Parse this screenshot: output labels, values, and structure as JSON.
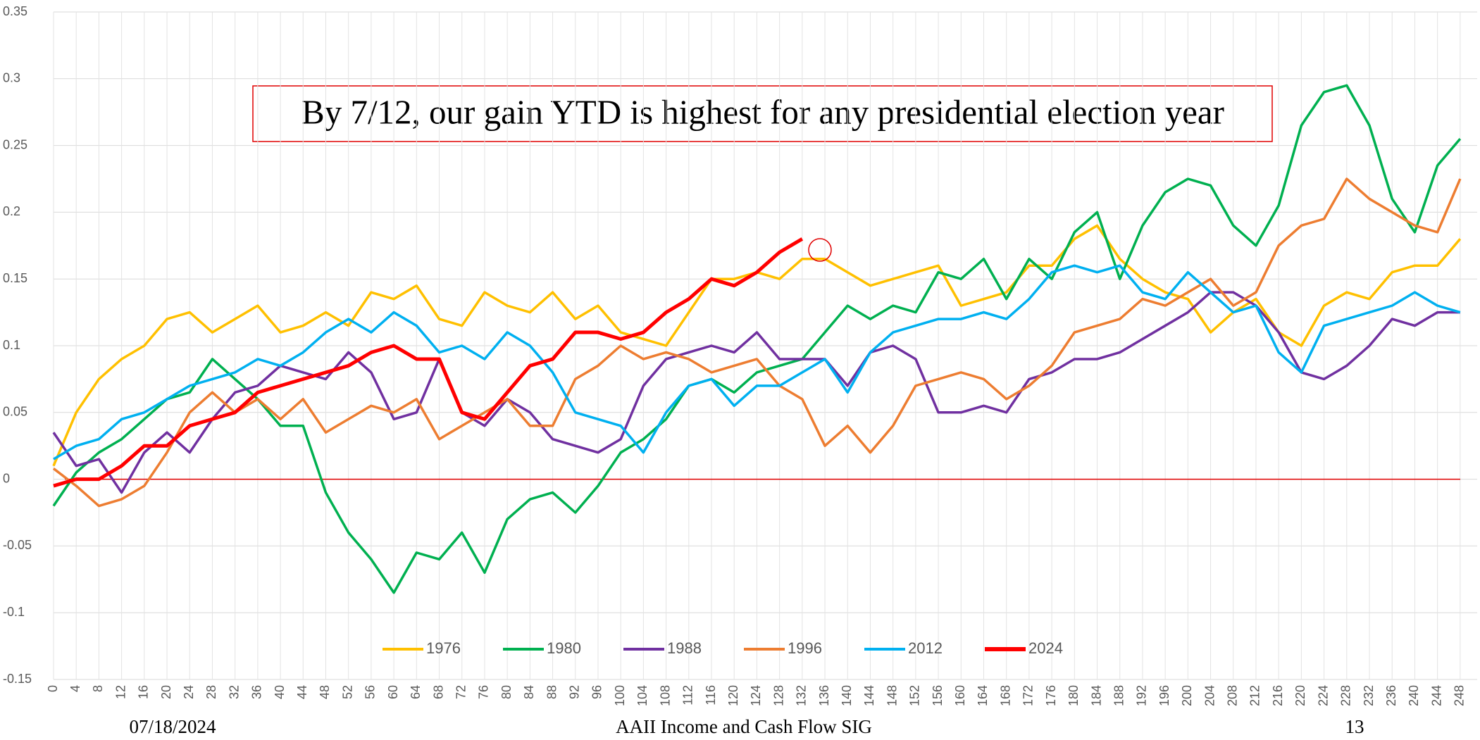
{
  "chart_data": {
    "type": "line",
    "annotation": "By 7/12, our gain YTD is highest for any presidential election year",
    "footer": {
      "date": "07/18/2024",
      "center": "AAII Income and Cash Flow SIG",
      "page": "13"
    },
    "x": [
      0,
      4,
      8,
      12,
      16,
      20,
      24,
      28,
      32,
      36,
      40,
      44,
      48,
      52,
      56,
      60,
      64,
      68,
      72,
      76,
      80,
      84,
      88,
      92,
      96,
      100,
      104,
      108,
      112,
      116,
      120,
      124,
      128,
      132,
      136,
      140,
      144,
      148,
      152,
      156,
      160,
      164,
      168,
      172,
      176,
      180,
      184,
      188,
      192,
      196,
      200,
      204,
      208,
      212,
      216,
      220,
      224,
      228,
      232,
      236,
      240,
      244,
      248
    ],
    "series": [
      {
        "name": "1976",
        "color": "#FFC000",
        "values": [
          0.01,
          0.05,
          0.075,
          0.09,
          0.1,
          0.12,
          0.125,
          0.11,
          0.12,
          0.13,
          0.11,
          0.115,
          0.125,
          0.115,
          0.14,
          0.135,
          0.145,
          0.12,
          0.115,
          0.14,
          0.13,
          0.125,
          0.14,
          0.12,
          0.13,
          0.11,
          0.105,
          0.1,
          0.125,
          0.15,
          0.15,
          0.155,
          0.15,
          0.165,
          0.165,
          0.155,
          0.145,
          0.15,
          0.155,
          0.16,
          0.13,
          0.135,
          0.14,
          0.16,
          0.16,
          0.18,
          0.19,
          0.165,
          0.15,
          0.14,
          0.135,
          0.11,
          0.125,
          0.135,
          0.11,
          0.1,
          0.13,
          0.14,
          0.135,
          0.155,
          0.16,
          0.16,
          0.18
        ]
      },
      {
        "name": "1980",
        "color": "#00B050",
        "values": [
          -0.02,
          0.005,
          0.02,
          0.03,
          0.045,
          0.06,
          0.065,
          0.09,
          0.075,
          0.06,
          0.04,
          0.04,
          -0.01,
          -0.04,
          -0.06,
          -0.085,
          -0.055,
          -0.06,
          -0.04,
          -0.07,
          -0.03,
          -0.015,
          -0.01,
          -0.025,
          -0.005,
          0.02,
          0.03,
          0.045,
          0.07,
          0.075,
          0.065,
          0.08,
          0.085,
          0.09,
          0.11,
          0.13,
          0.12,
          0.13,
          0.125,
          0.155,
          0.15,
          0.165,
          0.135,
          0.165,
          0.15,
          0.185,
          0.2,
          0.15,
          0.19,
          0.215,
          0.225,
          0.22,
          0.19,
          0.175,
          0.205,
          0.265,
          0.29,
          0.295,
          0.265,
          0.21,
          0.185,
          0.235,
          0.255
        ]
      },
      {
        "name": "1988",
        "color": "#7030A0",
        "values": [
          0.035,
          0.01,
          0.015,
          -0.01,
          0.02,
          0.035,
          0.02,
          0.045,
          0.065,
          0.07,
          0.085,
          0.08,
          0.075,
          0.095,
          0.08,
          0.045,
          0.05,
          0.09,
          0.05,
          0.04,
          0.06,
          0.05,
          0.03,
          0.025,
          0.02,
          0.03,
          0.07,
          0.09,
          0.095,
          0.1,
          0.095,
          0.11,
          0.09,
          0.09,
          0.09,
          0.07,
          0.095,
          0.1,
          0.09,
          0.05,
          0.05,
          0.055,
          0.05,
          0.075,
          0.08,
          0.09,
          0.09,
          0.095,
          0.105,
          0.115,
          0.125,
          0.14,
          0.14,
          0.13,
          0.11,
          0.08,
          0.075,
          0.085,
          0.1,
          0.12,
          0.115,
          0.125,
          0.125
        ]
      },
      {
        "name": "1996",
        "color": "#ED7D31",
        "values": [
          0.008,
          -0.005,
          -0.02,
          -0.015,
          -0.005,
          0.02,
          0.05,
          0.065,
          0.05,
          0.06,
          0.045,
          0.06,
          0.035,
          0.045,
          0.055,
          0.05,
          0.06,
          0.03,
          0.04,
          0.05,
          0.06,
          0.04,
          0.04,
          0.075,
          0.085,
          0.1,
          0.09,
          0.095,
          0.09,
          0.08,
          0.085,
          0.09,
          0.07,
          0.06,
          0.025,
          0.04,
          0.02,
          0.04,
          0.07,
          0.075,
          0.08,
          0.075,
          0.06,
          0.07,
          0.085,
          0.11,
          0.115,
          0.12,
          0.135,
          0.13,
          0.14,
          0.15,
          0.13,
          0.14,
          0.175,
          0.19,
          0.195,
          0.225,
          0.21,
          0.2,
          0.19,
          0.185,
          0.225
        ]
      },
      {
        "name": "2012",
        "color": "#00B0F0",
        "values": [
          0.015,
          0.025,
          0.03,
          0.045,
          0.05,
          0.06,
          0.07,
          0.075,
          0.08,
          0.09,
          0.085,
          0.095,
          0.11,
          0.12,
          0.11,
          0.125,
          0.115,
          0.095,
          0.1,
          0.09,
          0.11,
          0.1,
          0.08,
          0.05,
          0.045,
          0.04,
          0.02,
          0.05,
          0.07,
          0.075,
          0.055,
          0.07,
          0.07,
          0.08,
          0.09,
          0.065,
          0.095,
          0.11,
          0.115,
          0.12,
          0.12,
          0.125,
          0.12,
          0.135,
          0.155,
          0.16,
          0.155,
          0.16,
          0.14,
          0.135,
          0.155,
          0.14,
          0.125,
          0.13,
          0.095,
          0.08,
          0.115,
          0.12,
          0.125,
          0.13,
          0.14,
          0.13,
          0.125
        ]
      },
      {
        "name": "2024",
        "color": "#FF0000",
        "values": [
          -0.005,
          0.0,
          0.0,
          0.01,
          0.025,
          0.025,
          0.04,
          0.045,
          0.05,
          0.065,
          0.07,
          0.075,
          0.08,
          0.085,
          0.095,
          0.1,
          0.09,
          0.09,
          0.05,
          0.045,
          0.065,
          0.085,
          0.09,
          0.11,
          0.11,
          0.105,
          0.11,
          0.125,
          0.135,
          0.15,
          0.145,
          0.155,
          0.17,
          0.18,
          null,
          null,
          null,
          null,
          null,
          null,
          null,
          null,
          null,
          null,
          null,
          null,
          null,
          null,
          null,
          null,
          null,
          null,
          null,
          null,
          null,
          null,
          null,
          null,
          null,
          null,
          null,
          null,
          null
        ]
      }
    ],
    "xlim": [
      0,
      251
    ],
    "xticks": [
      0,
      4,
      8,
      12,
      16,
      20,
      24,
      28,
      32,
      36,
      40,
      44,
      48,
      52,
      56,
      60,
      64,
      68,
      72,
      76,
      80,
      84,
      88,
      92,
      96,
      100,
      104,
      108,
      112,
      116,
      120,
      124,
      128,
      132,
      136,
      140,
      144,
      148,
      152,
      156,
      160,
      164,
      168,
      172,
      176,
      180,
      184,
      188,
      192,
      196,
      200,
      204,
      208,
      212,
      216,
      220,
      224,
      228,
      232,
      236,
      240,
      244,
      248
    ],
    "ylim": [
      -0.15,
      0.35
    ],
    "yticks": [
      -0.15,
      -0.1,
      -0.05,
      0,
      0.05,
      0.1,
      0.15,
      0.2,
      0.25,
      0.3,
      0.35
    ],
    "grid": true,
    "legend": "bottom"
  }
}
